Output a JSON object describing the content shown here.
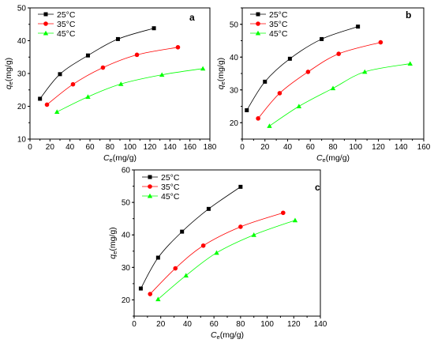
{
  "colors": {
    "25": "#000000",
    "35": "#ff0000",
    "45": "#00ff00"
  },
  "chart_data": [
    {
      "type": "line",
      "panel_label": "a",
      "xlabel": "C_e(mg/g)",
      "ylabel": "q_e(mg/g)",
      "xlim": [
        0,
        180
      ],
      "ylim": [
        10,
        50
      ],
      "xticks": [
        "0",
        "20",
        "40",
        "60",
        "80",
        "100",
        "120",
        "140",
        "160",
        "180"
      ],
      "yticks": [
        "10",
        "20",
        "30",
        "40",
        "50"
      ],
      "legend": "top-left",
      "series": [
        {
          "name": "25°C",
          "marker": "square",
          "color": "#000000",
          "x": [
            10,
            30,
            58,
            88,
            124
          ],
          "y": [
            22.3,
            29.8,
            35.5,
            40.5,
            43.8
          ]
        },
        {
          "name": "35°C",
          "marker": "circle",
          "color": "#ff0000",
          "x": [
            17,
            43,
            73,
            107,
            148
          ],
          "y": [
            20.5,
            26.7,
            31.8,
            35.7,
            38.0
          ]
        },
        {
          "name": "45°C",
          "marker": "triangle",
          "color": "#00ff00",
          "x": [
            27,
            58,
            91,
            132,
            173
          ],
          "y": [
            18.3,
            22.9,
            26.8,
            29.6,
            31.5
          ]
        }
      ]
    },
    {
      "type": "line",
      "panel_label": "b",
      "xlabel": "C_e(mg/g)",
      "ylabel": "q_e(mg/g)",
      "xlim": [
        0,
        160
      ],
      "ylim": [
        15,
        55
      ],
      "xticks": [
        "0",
        "20",
        "40",
        "60",
        "80",
        "100",
        "120",
        "140",
        "160"
      ],
      "yticks": [
        "20",
        "30",
        "40",
        "50"
      ],
      "legend": "top-left",
      "series": [
        {
          "name": "25°C",
          "marker": "square",
          "color": "#000000",
          "x": [
            4,
            20,
            42,
            70,
            102
          ],
          "y": [
            23.8,
            32.5,
            39.5,
            45.5,
            49.3
          ]
        },
        {
          "name": "35°C",
          "marker": "circle",
          "color": "#ff0000",
          "x": [
            14,
            33,
            58,
            85,
            122
          ],
          "y": [
            21.3,
            29.0,
            35.5,
            41.0,
            44.5
          ]
        },
        {
          "name": "45°C",
          "marker": "triangle",
          "color": "#00ff00",
          "x": [
            24,
            50,
            80,
            108,
            148
          ],
          "y": [
            19.0,
            25.0,
            30.5,
            35.5,
            38.0
          ]
        }
      ]
    },
    {
      "type": "line",
      "panel_label": "c",
      "xlabel": "C_e(mg/g)",
      "ylabel": "q_e(mg/g)",
      "xlim": [
        0,
        140
      ],
      "ylim": [
        15,
        60
      ],
      "xticks": [
        "0",
        "20",
        "40",
        "60",
        "80",
        "100",
        "120",
        "140"
      ],
      "yticks": [
        "20",
        "30",
        "40",
        "50",
        "60"
      ],
      "legend": "top-left",
      "series": [
        {
          "name": "25°C",
          "marker": "square",
          "color": "#000000",
          "x": [
            5,
            18,
            36,
            56,
            80
          ],
          "y": [
            23.5,
            33.0,
            41.0,
            48.0,
            54.8
          ]
        },
        {
          "name": "35°C",
          "marker": "circle",
          "color": "#ff0000",
          "x": [
            12,
            31,
            52,
            80,
            112
          ],
          "y": [
            21.8,
            29.7,
            36.7,
            42.5,
            46.8
          ]
        },
        {
          "name": "45°C",
          "marker": "triangle",
          "color": "#00ff00",
          "x": [
            18,
            39,
            62,
            90,
            121
          ],
          "y": [
            20.2,
            27.5,
            34.5,
            40.0,
            44.5
          ]
        }
      ]
    }
  ]
}
